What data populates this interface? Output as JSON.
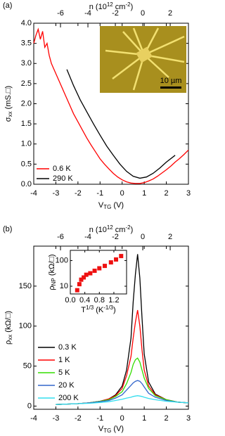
{
  "chart_data": [
    {
      "type": "line",
      "panel": "(a)",
      "xlabel": [
        "V",
        "TG",
        " (V)"
      ],
      "ylabel": [
        "σ",
        "xx",
        " (mS.□)"
      ],
      "x2label": [
        "n (10",
        "12",
        " cm",
        "-2",
        ")"
      ],
      "xlim": [
        -4,
        3
      ],
      "xticks": [
        -4,
        -3,
        -2,
        -1,
        0,
        1,
        2,
        3
      ],
      "x2lim": [
        -7.95,
        3.33
      ],
      "x2ticks": [
        -6,
        -4,
        -2,
        0,
        2
      ],
      "ylim": [
        0,
        4
      ],
      "yticks": [
        {
          "value": 0,
          "label": "0.0"
        },
        0.5,
        {
          "value": 1,
          "label": "1.0"
        },
        1.5,
        {
          "value": 2,
          "label": "2.0"
        },
        2.5,
        {
          "value": 3,
          "label": "3.0"
        },
        3.5,
        {
          "value": 4,
          "label": "4.0"
        }
      ],
      "inset_scalebar": "10 µm",
      "series": [
        {
          "name": "0.6 K",
          "color": "#ff0000",
          "x": [
            -4,
            -3.9,
            -3.8,
            -3.7,
            -3.6,
            -3.5,
            -3.4,
            -3.3,
            -3.2,
            -3.0,
            -2.8,
            -2.6,
            -2.4,
            -2.2,
            -2.0,
            -1.8,
            -1.6,
            -1.4,
            -1.2,
            -1.0,
            -0.8,
            -0.6,
            -0.4,
            -0.2,
            0,
            0.2,
            0.4,
            0.6,
            0.8,
            1.0,
            1.2,
            1.4,
            1.6,
            1.8,
            2.0,
            2.2,
            2.4,
            2.6,
            2.8,
            3.0
          ],
          "values": [
            3.5,
            3.7,
            3.85,
            3.6,
            3.8,
            3.4,
            3.5,
            3.2,
            3.0,
            2.75,
            2.5,
            2.25,
            2.0,
            1.75,
            1.55,
            1.35,
            1.15,
            0.97,
            0.8,
            0.63,
            0.5,
            0.38,
            0.27,
            0.18,
            0.11,
            0.06,
            0.03,
            0.02,
            0.02,
            0.04,
            0.08,
            0.13,
            0.2,
            0.28,
            0.36,
            0.45,
            0.55,
            0.64,
            0.74,
            0.85
          ]
        },
        {
          "name": "290 K",
          "color": "#000000",
          "x": [
            -2.5,
            -2.2,
            -1.9,
            -1.6,
            -1.3,
            -1.0,
            -0.7,
            -0.4,
            -0.1,
            0.2,
            0.5,
            0.8,
            1.1,
            1.4,
            1.7,
            2.0,
            2.4
          ],
          "values": [
            2.85,
            2.45,
            2.1,
            1.8,
            1.5,
            1.22,
            0.95,
            0.72,
            0.5,
            0.32,
            0.2,
            0.15,
            0.18,
            0.27,
            0.4,
            0.55,
            0.72
          ]
        }
      ]
    },
    {
      "type": "line",
      "panel": "(b)",
      "xlabel": [
        "V",
        "TG",
        " (V)"
      ],
      "ylabel": [
        "ρ",
        "xx",
        " (kΩ/□)"
      ],
      "x2label": [
        "n (10",
        "12",
        " cm",
        "-2",
        ")"
      ],
      "xlim": [
        -4,
        3
      ],
      "xticks": [
        -4,
        -3,
        -2,
        -1,
        0,
        1,
        2,
        3
      ],
      "x2lim": [
        -7.95,
        3.33
      ],
      "x2ticks": [
        -6,
        -4,
        -2,
        0,
        2
      ],
      "ylim": [
        -4,
        200
      ],
      "yticks": [
        0,
        50,
        100,
        150
      ],
      "x": [
        -3,
        -2.5,
        -2,
        -1.5,
        -1,
        -0.6,
        -0.3,
        0,
        0.2,
        0.4,
        0.5,
        0.6,
        0.7,
        0.8,
        0.9,
        1.0,
        1.2,
        1.5,
        2,
        2.5,
        3
      ],
      "series": [
        {
          "name": "0.3 K",
          "color": "#000000",
          "values": [
            2,
            2.5,
            3,
            4,
            6,
            9,
            14,
            25,
            45,
            85,
            130,
            165,
            190,
            160,
            110,
            65,
            30,
            15,
            8,
            5,
            4
          ]
        },
        {
          "name": "1 K",
          "color": "#ff0000",
          "values": [
            2,
            2.5,
            3,
            4,
            6,
            9,
            13,
            22,
            38,
            62,
            85,
            105,
            120,
            100,
            70,
            45,
            25,
            14,
            8,
            5,
            4
          ]
        },
        {
          "name": "5 K",
          "color": "#33dd00",
          "values": [
            2,
            2.5,
            3,
            4,
            6,
            8,
            12,
            18,
            28,
            42,
            52,
            58,
            60,
            55,
            45,
            35,
            22,
            13,
            8,
            5,
            4
          ]
        },
        {
          "name": "20 K",
          "color": "#3366cc",
          "values": [
            2,
            2.5,
            3,
            4,
            5.5,
            7,
            10,
            14,
            20,
            26,
            29,
            31,
            32,
            31,
            28,
            24,
            16,
            11,
            7,
            5,
            4
          ]
        },
        {
          "name": "200 K",
          "color": "#33ddee",
          "values": [
            2,
            2.5,
            3,
            3.5,
            4.5,
            5.5,
            7,
            8.5,
            10,
            11,
            12,
            12.5,
            13,
            12.5,
            12,
            11,
            9.5,
            8,
            6,
            5,
            4
          ]
        }
      ]
    },
    {
      "type": "scatter",
      "xlabel": [
        "T",
        "1/3",
        " (K",
        "-1/3",
        ")"
      ],
      "ylabel": [
        "ρ",
        "NP",
        " (kΩ/□)"
      ],
      "xlim": [
        0,
        1.55
      ],
      "xticks": [
        {
          "value": 0,
          "label": "0.0"
        },
        0.4,
        0.8,
        1.2
      ],
      "ylim": [
        5,
        250
      ],
      "yticks": [
        10,
        100
      ],
      "ylog": true,
      "color": "#ee1111",
      "x": [
        0.19,
        0.25,
        0.3,
        0.37,
        0.44,
        0.55,
        0.67,
        0.8,
        0.95,
        1.12,
        1.26,
        1.4
      ],
      "values": [
        7,
        12,
        18,
        22,
        28,
        32,
        40,
        50,
        62,
        85,
        110,
        150
      ]
    }
  ]
}
